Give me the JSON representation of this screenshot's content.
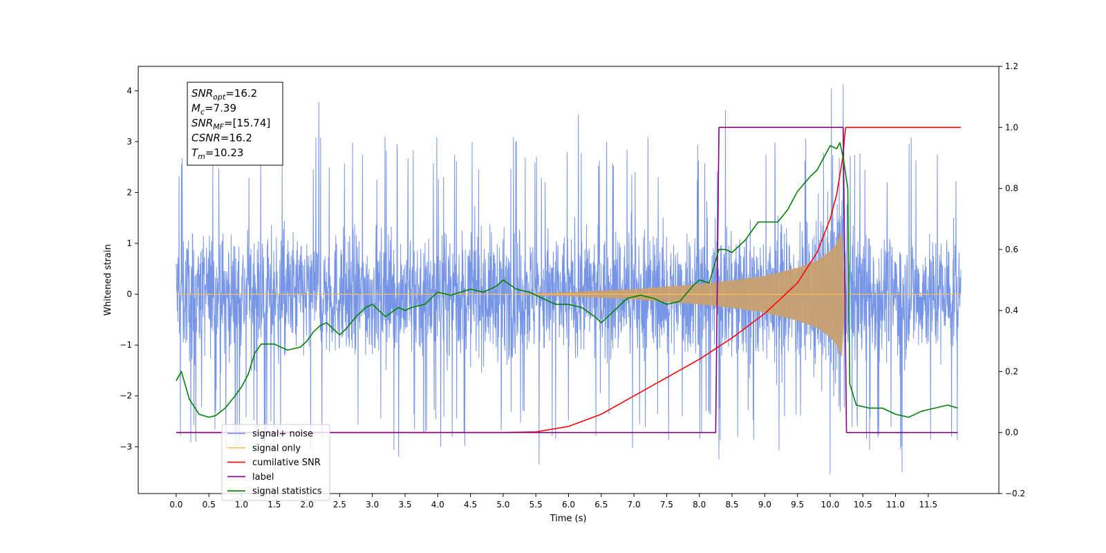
{
  "chart_data": {
    "type": "line",
    "title": "",
    "xlabel": "Time (s)",
    "ylabel": "Whitened strain",
    "y2label": "",
    "xlim": [
      -0.58,
      12.58
    ],
    "ylim": [
      -3.92,
      4.48
    ],
    "y2lim": [
      -0.2,
      1.2
    ],
    "x_ticks": [
      0.0,
      0.5,
      1.0,
      1.5,
      2.0,
      2.5,
      3.0,
      3.5,
      4.0,
      4.5,
      5.0,
      5.5,
      6.0,
      6.5,
      7.0,
      7.5,
      8.0,
      8.5,
      9.0,
      9.5,
      10.0,
      10.5,
      11.0,
      11.5
    ],
    "x_tick_labels": [
      "0.0",
      "0.5",
      "1.0",
      "1.5",
      "2.0",
      "2.5",
      "3.0",
      "3.5",
      "4.0",
      "4.5",
      "5.0",
      "5.5",
      "6.0",
      "6.5",
      "7.0",
      "7.5",
      "8.0",
      "8.5",
      "9.0",
      "9.5",
      "10.0",
      "10.5",
      "11.0",
      "11.5"
    ],
    "y_ticks": [
      -3,
      -2,
      -1,
      0,
      1,
      2,
      3,
      4
    ],
    "y_tick_labels": [
      "−3",
      "−2",
      "−1",
      "0",
      "1",
      "2",
      "3",
      "4"
    ],
    "y2_ticks": [
      -0.2,
      0.0,
      0.2,
      0.4,
      0.6,
      0.8,
      1.0,
      1.2
    ],
    "y2_tick_labels": [
      "−0.2",
      "0.0",
      "0.2",
      "0.4",
      "0.6",
      "0.8",
      "1.0",
      "1.2"
    ],
    "grid": false,
    "legend_position": "lower-left",
    "legend": [
      {
        "label": "signal+ noise",
        "color": "#6f8fe6"
      },
      {
        "label": "signal only",
        "color": "#ffc060"
      },
      {
        "label": "cumilative SNR",
        "color": "#ff0000"
      },
      {
        "label": "label",
        "color": "#800080"
      },
      {
        "label": "signal statistics",
        "color": "#008000"
      }
    ],
    "annotation": [
      {
        "base": "SNR",
        "sub": "opt",
        "value": "=16.2"
      },
      {
        "base": "M",
        "sub": "c",
        "value": "=7.39"
      },
      {
        "base": "SNR",
        "sub": "MF",
        "value": "=[15.74]"
      },
      {
        "base": "CSNR",
        "sub": "",
        "value": "=16.2"
      },
      {
        "base": "T",
        "sub": "m",
        "value": "=10.23"
      }
    ],
    "series": [
      {
        "name": "signal+ noise",
        "axis": "left",
        "color": "#6f8fe6",
        "x_range": [
          0.0,
          12.0
        ],
        "band_upper": 2.3,
        "band_lower": -2.3,
        "peaks": [
          {
            "x": 0.08,
            "y": 2.55
          },
          {
            "x": 2.18,
            "y": 3.78
          },
          {
            "x": 6.15,
            "y": 3.53
          },
          {
            "x": 8.4,
            "y": 3.62
          },
          {
            "x": 10.2,
            "y": 4.12
          },
          {
            "x": 10.02,
            "y": 4.05
          },
          {
            "x": 10.0,
            "y": -3.55
          },
          {
            "x": 5.55,
            "y": -3.35
          },
          {
            "x": 11.1,
            "y": -3.5
          },
          {
            "x": 0.3,
            "y": -2.9
          },
          {
            "x": 3.4,
            "y": -3.2
          },
          {
            "x": 8.3,
            "y": -3.25
          }
        ]
      },
      {
        "name": "signal only",
        "axis": "left",
        "color": "#ffc060",
        "x": [
          0.0,
          5.0,
          6.0,
          7.0,
          7.5,
          8.0,
          8.5,
          9.0,
          9.5,
          9.8,
          10.0,
          10.1,
          10.18,
          10.23,
          12.0
        ],
        "amplitude": [
          0.0,
          0.0,
          0.04,
          0.1,
          0.15,
          0.2,
          0.27,
          0.36,
          0.52,
          0.66,
          0.85,
          1.0,
          1.25,
          0.0,
          0.0
        ]
      },
      {
        "name": "cumilative SNR",
        "axis": "right",
        "color": "#ff0000",
        "x": [
          0.0,
          5.0,
          5.5,
          6.0,
          6.5,
          7.0,
          7.5,
          8.0,
          8.5,
          9.0,
          9.5,
          9.8,
          10.0,
          10.1,
          10.2,
          10.23,
          12.0
        ],
        "y": [
          0.0,
          0.0,
          0.002,
          0.02,
          0.06,
          0.12,
          0.18,
          0.24,
          0.31,
          0.39,
          0.49,
          0.59,
          0.7,
          0.78,
          0.91,
          1.0,
          1.0
        ]
      },
      {
        "name": "label",
        "axis": "right",
        "color": "#800080",
        "x": [
          0.0,
          8.25,
          8.3,
          10.2,
          10.25,
          11.95
        ],
        "y": [
          0.0,
          0.0,
          1.0,
          1.0,
          0.0,
          0.0
        ]
      },
      {
        "name": "signal statistics",
        "axis": "right",
        "color": "#008000",
        "x": [
          0.0,
          0.08,
          0.2,
          0.35,
          0.5,
          0.6,
          0.75,
          0.9,
          1.0,
          1.1,
          1.2,
          1.3,
          1.5,
          1.7,
          1.9,
          2.0,
          2.1,
          2.2,
          2.3,
          2.4,
          2.5,
          2.6,
          2.75,
          2.9,
          3.0,
          3.2,
          3.4,
          3.5,
          3.6,
          3.8,
          4.0,
          4.2,
          4.5,
          4.7,
          4.9,
          5.0,
          5.2,
          5.4,
          5.6,
          5.8,
          6.0,
          6.2,
          6.4,
          6.5,
          6.7,
          6.9,
          7.1,
          7.3,
          7.5,
          7.7,
          7.9,
          8.0,
          8.15,
          8.3,
          8.4,
          8.5,
          8.7,
          8.9,
          9.0,
          9.2,
          9.35,
          9.5,
          9.7,
          9.8,
          9.9,
          10.0,
          10.1,
          10.15,
          10.2,
          10.27,
          10.3,
          10.4,
          10.6,
          10.8,
          11.0,
          11.2,
          11.4,
          11.6,
          11.8,
          11.95
        ],
        "y": [
          0.17,
          0.2,
          0.11,
          0.06,
          0.05,
          0.055,
          0.08,
          0.12,
          0.15,
          0.19,
          0.26,
          0.29,
          0.29,
          0.27,
          0.28,
          0.3,
          0.33,
          0.35,
          0.36,
          0.34,
          0.32,
          0.34,
          0.38,
          0.41,
          0.42,
          0.38,
          0.41,
          0.4,
          0.41,
          0.42,
          0.46,
          0.45,
          0.47,
          0.46,
          0.48,
          0.5,
          0.47,
          0.46,
          0.44,
          0.42,
          0.42,
          0.41,
          0.38,
          0.36,
          0.4,
          0.44,
          0.45,
          0.44,
          0.42,
          0.43,
          0.48,
          0.5,
          0.49,
          0.6,
          0.6,
          0.59,
          0.63,
          0.69,
          0.69,
          0.69,
          0.73,
          0.79,
          0.84,
          0.86,
          0.9,
          0.94,
          0.93,
          0.95,
          0.9,
          0.8,
          0.16,
          0.09,
          0.08,
          0.08,
          0.06,
          0.05,
          0.07,
          0.08,
          0.09,
          0.08
        ]
      }
    ]
  }
}
